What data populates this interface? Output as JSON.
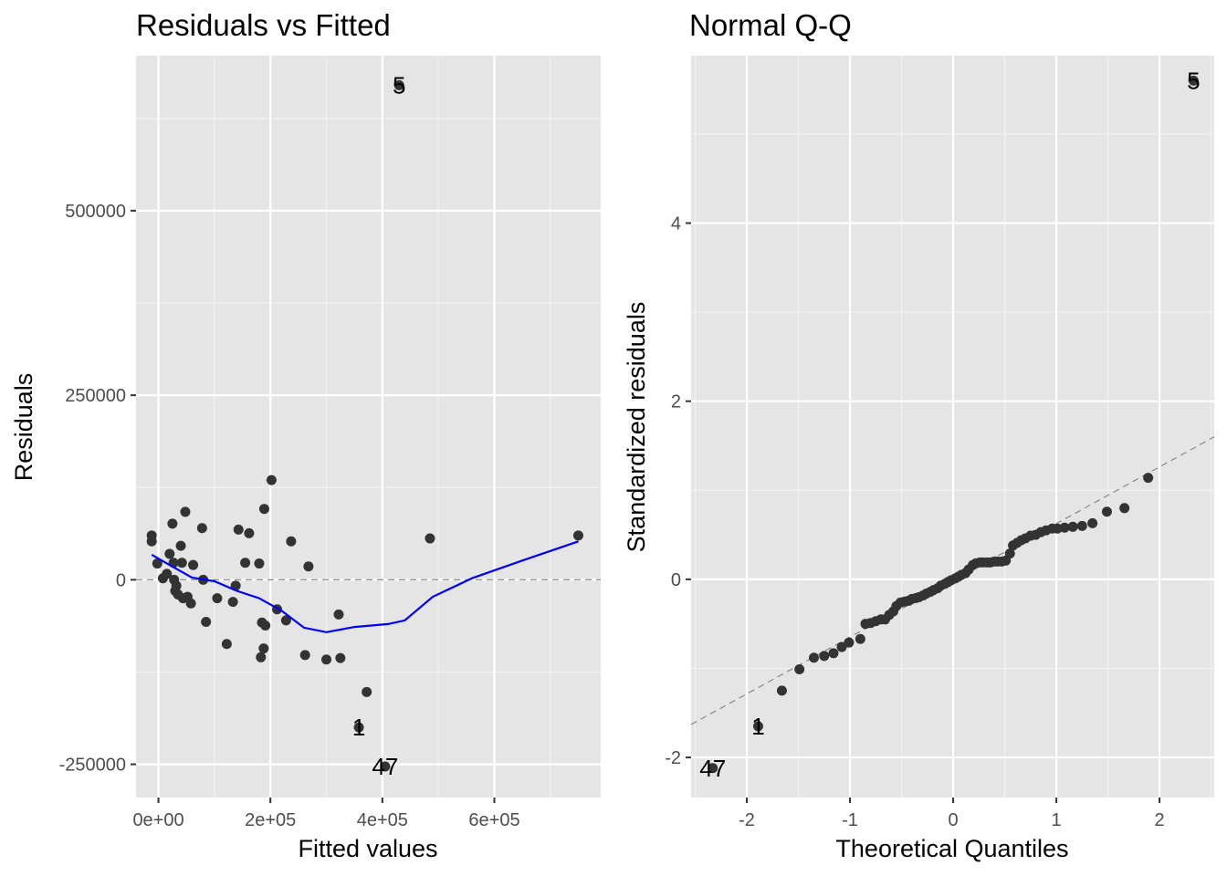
{
  "chart_data": [
    {
      "type": "scatter",
      "title": "Residuals vs Fitted",
      "xlabel": "Fitted values",
      "ylabel": "Residuals",
      "xlim": [
        -40000,
        790000
      ],
      "ylim": [
        -295000,
        710000
      ],
      "x_ticks": [
        0,
        200000,
        400000,
        600000
      ],
      "x_tick_labels": [
        "0e+00",
        "2e+05",
        "4e+05",
        "6e+05"
      ],
      "y_ticks": [
        -250000,
        0,
        250000,
        500000
      ],
      "y_tick_labels": [
        "-250000",
        "0",
        "250000",
        "500000"
      ],
      "grid": true,
      "reference_line": {
        "y": 0,
        "style": "dashed",
        "color": "#808080"
      },
      "point_color": "#333333",
      "smooth_color": "#0000ff",
      "points": [
        [
          -12000,
          60000
        ],
        [
          -12000,
          52000
        ],
        [
          -2000,
          22000
        ],
        [
          8000,
          2000
        ],
        [
          15000,
          8000
        ],
        [
          20000,
          35000
        ],
        [
          25000,
          76000
        ],
        [
          27000,
          23000
        ],
        [
          28000,
          0
        ],
        [
          30000,
          -15000
        ],
        [
          32000,
          -8000
        ],
        [
          35000,
          -20000
        ],
        [
          40000,
          46000
        ],
        [
          42000,
          23000
        ],
        [
          44000,
          -25000
        ],
        [
          48000,
          92000
        ],
        [
          52000,
          -23000
        ],
        [
          58000,
          -32000
        ],
        [
          62000,
          20000
        ],
        [
          78000,
          70000
        ],
        [
          80000,
          0
        ],
        [
          85000,
          -57000
        ],
        [
          105000,
          -25000
        ],
        [
          122000,
          -87000
        ],
        [
          133000,
          -30000
        ],
        [
          138000,
          -8000
        ],
        [
          143000,
          68000
        ],
        [
          155000,
          23000
        ],
        [
          162000,
          63000
        ],
        [
          180000,
          22000
        ],
        [
          183000,
          -105000
        ],
        [
          185000,
          -58000
        ],
        [
          188000,
          -93000
        ],
        [
          189000,
          96000
        ],
        [
          191000,
          -62000
        ],
        [
          202000,
          135000
        ],
        [
          212000,
          -40000
        ],
        [
          228000,
          -55000
        ],
        [
          237000,
          52000
        ],
        [
          262000,
          -102000
        ],
        [
          268000,
          18000
        ],
        [
          300000,
          -108000
        ],
        [
          322000,
          -47000
        ],
        [
          325000,
          -106000
        ],
        [
          372000,
          -152000
        ],
        [
          485000,
          56000
        ],
        [
          750000,
          60000
        ]
      ],
      "labeled_points": [
        {
          "label": "5",
          "x": 430000,
          "y": 670000
        },
        {
          "label": "1",
          "x": 358000,
          "y": -200000
        },
        {
          "label": "47",
          "x": 405000,
          "y": -253000
        }
      ],
      "smooth": [
        [
          -12000,
          34000
        ],
        [
          20000,
          20000
        ],
        [
          60000,
          3000
        ],
        [
          100000,
          -2000
        ],
        [
          140000,
          -15000
        ],
        [
          180000,
          -25000
        ],
        [
          220000,
          -42000
        ],
        [
          260000,
          -65000
        ],
        [
          300000,
          -71000
        ],
        [
          350000,
          -64000
        ],
        [
          410000,
          -60000
        ],
        [
          440000,
          -55000
        ],
        [
          490000,
          -23000
        ],
        [
          560000,
          2000
        ],
        [
          650000,
          26000
        ],
        [
          750000,
          52000
        ]
      ]
    },
    {
      "type": "scatter",
      "title": "Normal Q-Q",
      "xlabel": "Theoretical Quantiles",
      "ylabel": "Standardized residuals",
      "xlim": [
        -2.54,
        2.53
      ],
      "ylim": [
        -2.45,
        5.88
      ],
      "x_ticks": [
        -2,
        -1,
        0,
        1,
        2
      ],
      "x_tick_labels": [
        "-2",
        "-1",
        "0",
        "1",
        "2"
      ],
      "y_ticks": [
        -2,
        0,
        2,
        4
      ],
      "y_tick_labels": [
        "-2",
        "0",
        "2",
        "4"
      ],
      "grid": true,
      "reference_line": {
        "from": [
          -2.54,
          -1.63
        ],
        "to": [
          2.53,
          1.6
        ],
        "style": "dashed",
        "color": "#808080"
      },
      "point_color": "#333333",
      "points": [
        [
          -1.66,
          -1.25
        ],
        [
          -1.49,
          -1.01
        ],
        [
          -1.35,
          -0.88
        ],
        [
          -1.25,
          -0.86
        ],
        [
          -1.16,
          -0.83
        ],
        [
          -1.08,
          -0.76
        ],
        [
          -1.01,
          -0.71
        ],
        [
          -0.9,
          -0.67
        ],
        [
          -0.85,
          -0.5
        ],
        [
          -0.8,
          -0.49
        ],
        [
          -0.75,
          -0.47
        ],
        [
          -0.7,
          -0.45
        ],
        [
          -0.66,
          -0.45
        ],
        [
          -0.62,
          -0.4
        ],
        [
          -0.58,
          -0.36
        ],
        [
          -0.55,
          -0.3
        ],
        [
          -0.51,
          -0.26
        ],
        [
          -0.47,
          -0.25
        ],
        [
          -0.43,
          -0.24
        ],
        [
          -0.4,
          -0.22
        ],
        [
          -0.36,
          -0.21
        ],
        [
          -0.33,
          -0.2
        ],
        [
          -0.29,
          -0.18
        ],
        [
          -0.26,
          -0.16
        ],
        [
          -0.22,
          -0.14
        ],
        [
          -0.19,
          -0.12
        ],
        [
          -0.15,
          -0.1
        ],
        [
          -0.12,
          -0.07
        ],
        [
          -0.08,
          -0.05
        ],
        [
          -0.05,
          -0.03
        ],
        [
          -0.02,
          -0.01
        ],
        [
          0.02,
          0.01
        ],
        [
          0.05,
          0.03
        ],
        [
          0.08,
          0.05
        ],
        [
          0.12,
          0.07
        ],
        [
          0.15,
          0.11
        ],
        [
          0.19,
          0.16
        ],
        [
          0.22,
          0.18
        ],
        [
          0.26,
          0.19
        ],
        [
          0.29,
          0.19
        ],
        [
          0.33,
          0.19
        ],
        [
          0.36,
          0.19
        ],
        [
          0.4,
          0.2
        ],
        [
          0.43,
          0.2
        ],
        [
          0.47,
          0.2
        ],
        [
          0.51,
          0.21
        ],
        [
          0.55,
          0.29
        ],
        [
          0.58,
          0.38
        ],
        [
          0.62,
          0.41
        ],
        [
          0.66,
          0.44
        ],
        [
          0.7,
          0.46
        ],
        [
          0.75,
          0.49
        ],
        [
          0.8,
          0.5
        ],
        [
          0.85,
          0.53
        ],
        [
          0.9,
          0.55
        ],
        [
          0.96,
          0.57
        ],
        [
          1.01,
          0.57
        ],
        [
          1.08,
          0.58
        ],
        [
          1.16,
          0.59
        ],
        [
          1.25,
          0.6
        ],
        [
          1.35,
          0.63
        ],
        [
          1.49,
          0.76
        ],
        [
          1.66,
          0.8
        ],
        [
          1.89,
          1.14
        ]
      ],
      "labeled_points": [
        {
          "label": "5",
          "x": 2.33,
          "y": 5.6
        },
        {
          "label": "1",
          "x": -1.89,
          "y": -1.65
        },
        {
          "label": "47",
          "x": -2.33,
          "y": -2.12
        }
      ]
    }
  ]
}
